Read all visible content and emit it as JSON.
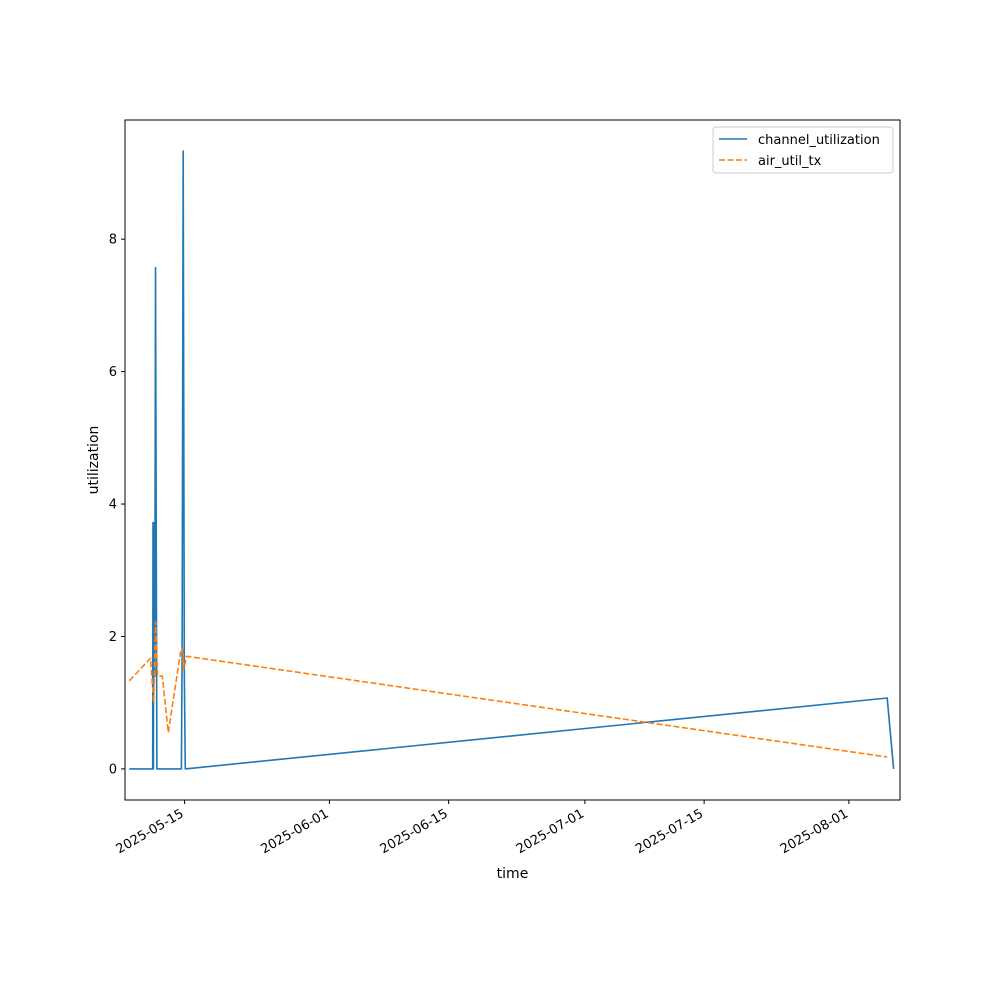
{
  "chart_data": {
    "type": "line",
    "title": "",
    "xlabel": "time",
    "ylabel": "utilization",
    "x_axis_type": "date",
    "xlim": [
      "2025-05-08",
      "2025-08-07"
    ],
    "ylim": [
      -0.47,
      9.8
    ],
    "x_ticks": [
      "2025-05-15",
      "2025-06-01",
      "2025-06-15",
      "2025-07-01",
      "2025-07-15",
      "2025-08-01"
    ],
    "y_ticks": [
      0,
      2,
      4,
      6,
      8
    ],
    "grid": false,
    "legend": {
      "position": "upper right"
    },
    "series": [
      {
        "name": "channel_utilization",
        "color": "#1f77b4",
        "linestyle": "solid",
        "points": [
          [
            "2025-05-08 12:00",
            0.0
          ],
          [
            "2025-05-11 06:00",
            0.0
          ],
          [
            "2025-05-11 07:00",
            3.72
          ],
          [
            "2025-05-11 08:00",
            0.0
          ],
          [
            "2025-05-11 09:00",
            3.72
          ],
          [
            "2025-05-11 12:00",
            1.4
          ],
          [
            "2025-05-11 14:00",
            7.57
          ],
          [
            "2025-05-11 18:00",
            0.0
          ],
          [
            "2025-05-14 15:00",
            0.0
          ],
          [
            "2025-05-14 17:00",
            1.7
          ],
          [
            "2025-05-14 20:00",
            9.33
          ],
          [
            "2025-05-14 23:00",
            1.45
          ],
          [
            "2025-05-15 02:00",
            0.0
          ],
          [
            "2025-08-05 12:00",
            1.07
          ],
          [
            "2025-08-06 06:00",
            0.0
          ]
        ]
      },
      {
        "name": "air_util_tx",
        "color": "#ff7f0e",
        "linestyle": "dashed",
        "points": [
          [
            "2025-05-08 12:00",
            1.33
          ],
          [
            "2025-05-11 00:00",
            1.67
          ],
          [
            "2025-05-11 09:00",
            1.0
          ],
          [
            "2025-05-11 14:00",
            2.22
          ],
          [
            "2025-05-11 20:00",
            1.4
          ],
          [
            "2025-05-12 09:00",
            1.4
          ],
          [
            "2025-05-13 02:00",
            0.55
          ],
          [
            "2025-05-14 12:00",
            1.75
          ],
          [
            "2025-05-14 18:00",
            1.82
          ],
          [
            "2025-05-14 21:00",
            1.5
          ],
          [
            "2025-05-15 06:00",
            1.7
          ],
          [
            "2025-08-05 12:00",
            0.18
          ]
        ]
      }
    ]
  }
}
